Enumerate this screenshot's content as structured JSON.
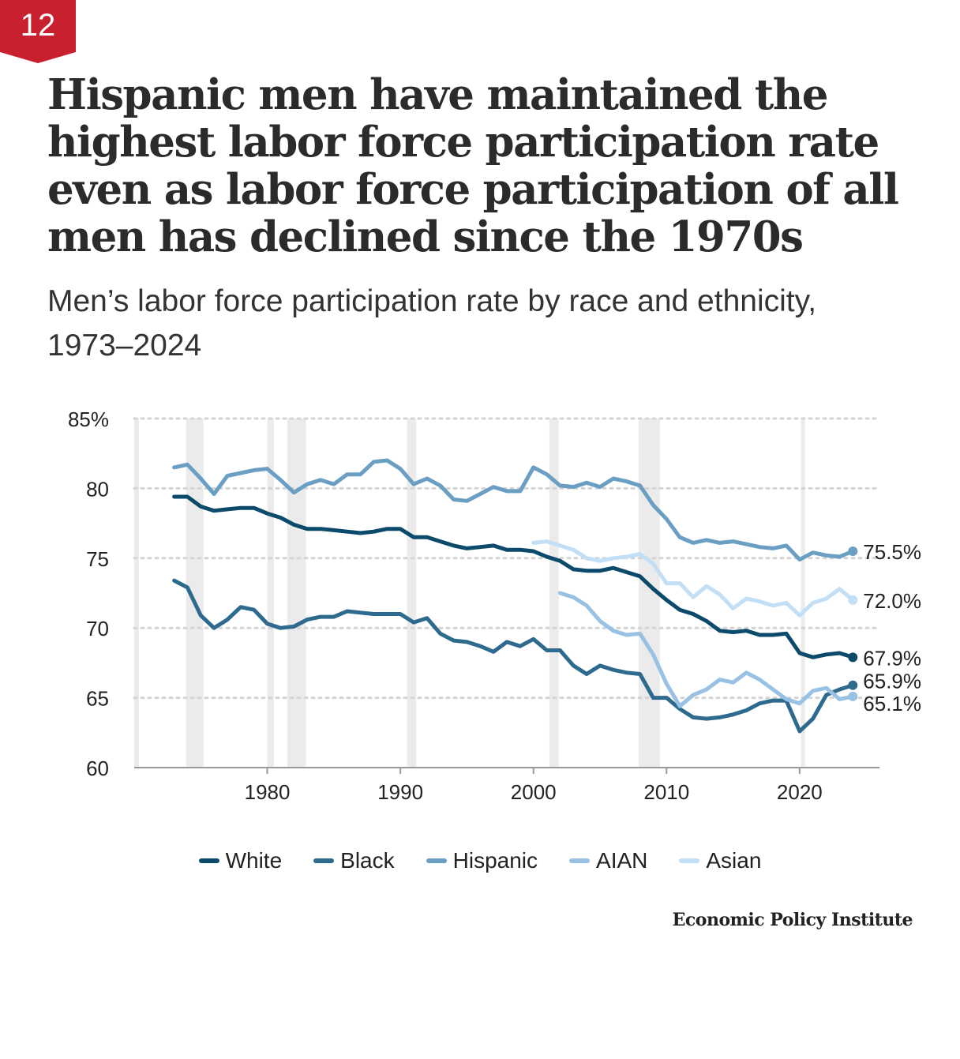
{
  "badge": {
    "number": "12",
    "color": "#c8202f"
  },
  "title": "Hispanic men have maintained the highest labor force participation rate even as labor force participation of all men has declined since the 1970s",
  "subtitle": "Men’s labor force participation rate by race and ethnicity, 1973–2024",
  "source": "Economic Policy Institute",
  "chart_data": {
    "type": "line",
    "xlabel": "",
    "ylabel": "",
    "xlim": [
      1970,
      2026
    ],
    "ylim": [
      60,
      85
    ],
    "x_ticks": [
      1980,
      1990,
      2000,
      2010,
      2020
    ],
    "x_tick_labels": [
      "1980",
      "1990",
      "2000",
      "2010",
      "2020"
    ],
    "y_ticks": [
      60,
      65,
      70,
      75,
      80,
      85
    ],
    "y_tick_labels": [
      "60",
      "65",
      "70",
      "75",
      "80",
      "85%"
    ],
    "grid": true,
    "legend_position": "bottom",
    "recessions": [
      [
        1973.9,
        1975.2
      ],
      [
        1980.0,
        1980.5
      ],
      [
        1981.5,
        1982.9
      ],
      [
        1990.5,
        1991.2
      ],
      [
        2001.2,
        2001.9
      ],
      [
        2007.9,
        2009.5
      ],
      [
        2020.1,
        2020.4
      ]
    ],
    "series": [
      {
        "name": "White",
        "color": "#0b4a6b",
        "end_label": "67.9%",
        "x": [
          1973,
          1974,
          1975,
          1976,
          1977,
          1978,
          1979,
          1980,
          1981,
          1982,
          1983,
          1984,
          1985,
          1986,
          1987,
          1988,
          1989,
          1990,
          1991,
          1992,
          1993,
          1994,
          1995,
          1996,
          1997,
          1998,
          1999,
          2000,
          2001,
          2002,
          2003,
          2004,
          2005,
          2006,
          2007,
          2008,
          2009,
          2010,
          2011,
          2012,
          2013,
          2014,
          2015,
          2016,
          2017,
          2018,
          2019,
          2020,
          2021,
          2022,
          2023,
          2024
        ],
        "y": [
          79.4,
          79.4,
          78.7,
          78.4,
          78.5,
          78.6,
          78.6,
          78.2,
          77.9,
          77.4,
          77.1,
          77.1,
          77.0,
          76.9,
          76.8,
          76.9,
          77.1,
          77.1,
          76.5,
          76.5,
          76.2,
          75.9,
          75.7,
          75.8,
          75.9,
          75.6,
          75.6,
          75.5,
          75.1,
          74.8,
          74.2,
          74.1,
          74.1,
          74.3,
          74.0,
          73.7,
          72.8,
          72.0,
          71.3,
          71.0,
          70.5,
          69.8,
          69.7,
          69.8,
          69.5,
          69.5,
          69.6,
          68.2,
          67.9,
          68.1,
          68.2,
          67.9
        ]
      },
      {
        "name": "Black",
        "color": "#2d6a8e",
        "end_label": "65.9%",
        "x": [
          1973,
          1974,
          1975,
          1976,
          1977,
          1978,
          1979,
          1980,
          1981,
          1982,
          1983,
          1984,
          1985,
          1986,
          1987,
          1988,
          1989,
          1990,
          1991,
          1992,
          1993,
          1994,
          1995,
          1996,
          1997,
          1998,
          1999,
          2000,
          2001,
          2002,
          2003,
          2004,
          2005,
          2006,
          2007,
          2008,
          2009,
          2010,
          2011,
          2012,
          2013,
          2014,
          2015,
          2016,
          2017,
          2018,
          2019,
          2020,
          2021,
          2022,
          2023,
          2024
        ],
        "y": [
          73.4,
          72.9,
          70.9,
          70.0,
          70.6,
          71.5,
          71.3,
          70.3,
          70.0,
          70.1,
          70.6,
          70.8,
          70.8,
          71.2,
          71.1,
          71.0,
          71.0,
          71.0,
          70.4,
          70.7,
          69.6,
          69.1,
          69.0,
          68.7,
          68.3,
          69.0,
          68.7,
          69.2,
          68.4,
          68.4,
          67.3,
          66.7,
          67.3,
          67.0,
          66.8,
          66.7,
          65.0,
          65.0,
          64.2,
          63.6,
          63.5,
          63.6,
          63.8,
          64.1,
          64.6,
          64.8,
          64.8,
          62.6,
          63.5,
          65.2,
          65.6,
          65.9
        ]
      },
      {
        "name": "Hispanic",
        "color": "#6a9fc3",
        "end_label": "75.5%",
        "x": [
          1973,
          1974,
          1975,
          1976,
          1977,
          1978,
          1979,
          1980,
          1981,
          1982,
          1983,
          1984,
          1985,
          1986,
          1987,
          1988,
          1989,
          1990,
          1991,
          1992,
          1993,
          1994,
          1995,
          1996,
          1997,
          1998,
          1999,
          2000,
          2001,
          2002,
          2003,
          2004,
          2005,
          2006,
          2007,
          2008,
          2009,
          2010,
          2011,
          2012,
          2013,
          2014,
          2015,
          2016,
          2017,
          2018,
          2019,
          2020,
          2021,
          2022,
          2023,
          2024
        ],
        "y": [
          81.5,
          81.7,
          80.7,
          79.6,
          80.9,
          81.1,
          81.3,
          81.4,
          80.6,
          79.7,
          80.3,
          80.6,
          80.3,
          81.0,
          81.0,
          81.9,
          82.0,
          81.4,
          80.3,
          80.7,
          80.2,
          79.2,
          79.1,
          79.6,
          80.1,
          79.8,
          79.8,
          81.5,
          81.0,
          80.2,
          80.1,
          80.4,
          80.1,
          80.7,
          80.5,
          80.2,
          78.8,
          77.8,
          76.5,
          76.1,
          76.3,
          76.1,
          76.2,
          76.0,
          75.8,
          75.7,
          75.9,
          74.9,
          75.4,
          75.2,
          75.1,
          75.5
        ]
      },
      {
        "name": "AIAN",
        "color": "#98c1e3",
        "end_label": "65.1%",
        "x": [
          2002,
          2003,
          2004,
          2005,
          2006,
          2007,
          2008,
          2009,
          2010,
          2011,
          2012,
          2013,
          2014,
          2015,
          2016,
          2017,
          2018,
          2019,
          2020,
          2021,
          2022,
          2023,
          2024
        ],
        "y": [
          72.5,
          72.2,
          71.6,
          70.5,
          69.8,
          69.5,
          69.6,
          68.1,
          66.0,
          64.4,
          65.2,
          65.6,
          66.3,
          66.1,
          66.8,
          66.3,
          65.6,
          64.9,
          64.6,
          65.5,
          65.7,
          64.9,
          65.1
        ]
      },
      {
        "name": "Asian",
        "color": "#c3dff5",
        "end_label": "72.0%",
        "x": [
          2000,
          2001,
          2002,
          2003,
          2004,
          2005,
          2006,
          2007,
          2008,
          2009,
          2010,
          2011,
          2012,
          2013,
          2014,
          2015,
          2016,
          2017,
          2018,
          2019,
          2020,
          2021,
          2022,
          2023,
          2024
        ],
        "y": [
          76.1,
          76.2,
          75.9,
          75.6,
          75.0,
          74.8,
          75.0,
          75.1,
          75.3,
          74.6,
          73.2,
          73.2,
          72.2,
          73.0,
          72.4,
          71.4,
          72.1,
          71.9,
          71.6,
          71.8,
          70.9,
          71.8,
          72.1,
          72.8,
          72.0
        ]
      }
    ]
  }
}
